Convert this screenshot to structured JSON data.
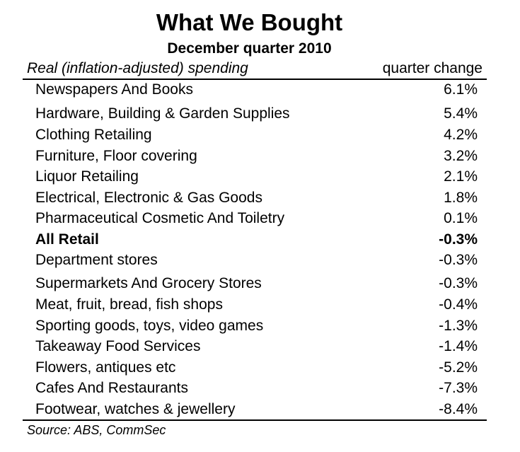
{
  "chart_data": {
    "type": "table",
    "title": "What We Bought",
    "subtitle": "December quarter 2010",
    "columns": [
      "Real (inflation-adjusted) spending",
      "quarter change"
    ],
    "rows": [
      {
        "label": "Newspapers And Books",
        "value": "6.1%",
        "bold": false
      },
      {
        "label": "Hardware, Building & Garden Supplies",
        "value": "5.4%",
        "bold": false
      },
      {
        "label": "Clothing Retailing",
        "value": "4.2%",
        "bold": false
      },
      {
        "label": "Furniture, Floor covering",
        "value": "3.2%",
        "bold": false
      },
      {
        "label": "Liquor Retailing",
        "value": "2.1%",
        "bold": false
      },
      {
        "label": "Electrical, Electronic & Gas Goods",
        "value": "1.8%",
        "bold": false
      },
      {
        "label": "Pharmaceutical Cosmetic And Toiletry",
        "value": "0.1%",
        "bold": false
      },
      {
        "label": "All Retail",
        "value": "-0.3%",
        "bold": true
      },
      {
        "label": "Department stores",
        "value": "-0.3%",
        "bold": false
      },
      {
        "label": "Supermarkets And Grocery Stores",
        "value": "-0.3%",
        "bold": false
      },
      {
        "label": "Meat, fruit, bread, fish shops",
        "value": "-0.4%",
        "bold": false
      },
      {
        "label": "Sporting goods, toys, video games",
        "value": "-1.3%",
        "bold": false
      },
      {
        "label": "Takeaway Food Services",
        "value": "-1.4%",
        "bold": false
      },
      {
        "label": "Flowers, antiques etc",
        "value": "-5.2%",
        "bold": false
      },
      {
        "label": "Cafes And Restaurants",
        "value": "-7.3%",
        "bold": false
      },
      {
        "label": "Footwear, watches & jewellery",
        "value": "-8.4%",
        "bold": false
      }
    ],
    "source": "Source: ABS, CommSec"
  }
}
